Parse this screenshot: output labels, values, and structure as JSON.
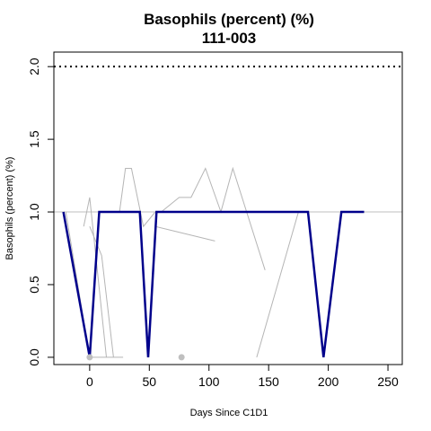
{
  "chart_data": {
    "type": "line",
    "title": "Basophils (percent) (%)",
    "subtitle": "111-003",
    "xlabel": "Days Since C1D1",
    "ylabel": "Basophils (percent) (%)",
    "xlim": [
      -30,
      262
    ],
    "ylim": [
      -0.05,
      2.1
    ],
    "x_ticks": [
      0,
      50,
      100,
      150,
      200,
      250
    ],
    "x_tick_labels": [
      "0",
      "50",
      "100",
      "150",
      "200",
      "250"
    ],
    "y_ticks": [
      0.0,
      0.5,
      1.0,
      1.5,
      2.0
    ],
    "y_tick_labels": [
      "0.0",
      "0.5",
      "1.0",
      "1.5",
      "2.0"
    ],
    "reference_lines": [
      {
        "y": 1.0,
        "style": "solid",
        "color": "#bfbfbf"
      },
      {
        "y": 2.0,
        "style": "dotted",
        "color": "#000000"
      }
    ],
    "highlight_series": {
      "color": "#00008B",
      "x": [
        -22,
        0,
        8,
        42,
        49,
        56,
        183,
        196,
        211,
        230
      ],
      "y": [
        1.0,
        0.0,
        1.0,
        1.0,
        0.0,
        1.0,
        1.0,
        0.0,
        1.0,
        1.0
      ]
    },
    "background_series": [
      {
        "x": [
          -5,
          0,
          14
        ],
        "y": [
          0.9,
          1.1,
          0.0
        ]
      },
      {
        "x": [
          -20,
          0,
          28
        ],
        "y": [
          1.0,
          0.0,
          0.0
        ]
      },
      {
        "x": [
          0,
          10,
          20
        ],
        "y": [
          0.9,
          0.7,
          0.0
        ]
      },
      {
        "x": [
          25,
          30,
          35,
          45,
          55,
          62
        ],
        "y": [
          1.0,
          1.3,
          1.3,
          0.9,
          1.0,
          1.0
        ]
      },
      {
        "x": [
          55,
          105
        ],
        "y": [
          0.9,
          0.8
        ]
      },
      {
        "x": [
          60,
          75,
          85,
          97,
          110,
          120,
          147
        ],
        "y": [
          1.0,
          1.1,
          1.1,
          1.3,
          1.0,
          1.3,
          0.6
        ]
      },
      {
        "x": [
          140,
          175
        ],
        "y": [
          0.0,
          1.0
        ]
      }
    ],
    "points": [
      {
        "x": 0,
        "y": 0.0,
        "color": "#bfbfbf"
      },
      {
        "x": 77,
        "y": 0.0,
        "color": "#bfbfbf"
      }
    ],
    "grid": false,
    "legend": "none"
  }
}
